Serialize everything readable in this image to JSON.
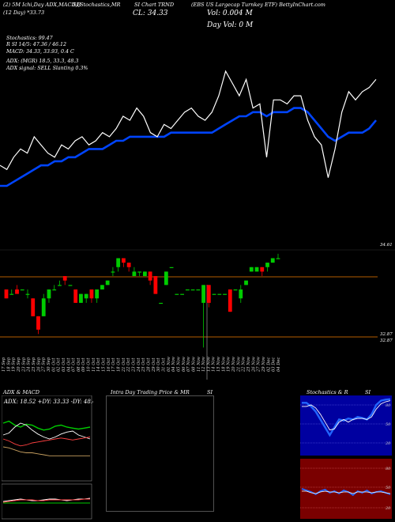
{
  "header": {
    "line1_left": "(2) 5M Ichi,Day ADX,MACD,B",
    "line1_mid": "SI,Stochastics,MR",
    "line1_mid2": "SI Chart TRND",
    "line1_right": "(EBS US Largecap Turnkey ETF) BettyInChart.com",
    "line2_left": "(12 Day) *33.73",
    "close_label": "CL: 34.33",
    "vol_label": "Vol: 0.004  M",
    "dayvol_label": "Day Vol: 0  M"
  },
  "indicators": {
    "stochastics": "Stochastics: 99.47",
    "rsi": "R           SI 14/5: 47.36 / 46.12",
    "macd": "MACD: 34.33, 33.93, 0.4  C",
    "adx": "ADX:                         (MGR) 18.5, 33.3, 48.3",
    "signal": "ADX  signal: SELL  Slanting 0.3%"
  },
  "price_labels": {
    "top": "34.61",
    "bottom1": "32.87",
    "bottom2": "32.87"
  },
  "colors": {
    "up": "#00cc00",
    "down": "#ff0000",
    "ma": "#0044ff",
    "line": "#ffffff",
    "hline": "#b35c00",
    "macd_bg": "#7a0000",
    "stoch_bg": "#0000a0"
  },
  "x_dates": [
    "17 Sep",
    "18 Sep",
    "19 Sep",
    "20 Sep",
    "23 Sep",
    "24 Sep",
    "25 Sep",
    "26 Sep",
    "27 Sep",
    "30 Sep",
    "01 Oct",
    "02 Oct",
    "03 Oct",
    "04 Oct",
    "07 Oct",
    "08 Oct",
    "09 Oct",
    "10 Oct",
    "11 Oct",
    "14 Oct",
    "15 Oct",
    "16 Oct",
    "17 Oct",
    "18 Oct",
    "21 Oct",
    "22 Oct",
    "23 Oct",
    "24 Oct",
    "25 Oct",
    "28 Oct",
    "29 Oct",
    "30 Oct",
    "31 Oct",
    "01 Nov",
    "04 Nov",
    "05 Nov",
    "06 Nov",
    "07 Nov",
    "08 Nov",
    "11 Nov",
    "12 Nov",
    "13 Nov",
    "14 Nov",
    "15 Nov",
    "18 Nov",
    "19 Nov",
    "20 Nov",
    "21 Nov",
    "22 Nov",
    "25 Nov",
    "26 Nov",
    "27 Nov",
    "29 Nov",
    "02 Dec",
    "03 Dec",
    "04 Dec"
  ],
  "panels": {
    "adx_title": "ADX  & MACD",
    "adx_values": "ADX: 18.52  +DY: 33.33 -DY: 48.48",
    "intraday_title": "Intra  Day Trading Price  & MR",
    "intraday_si": "SI",
    "stoch_title": "Stochastics & R",
    "stoch_si": "SI",
    "stoch_levels": [
      "80",
      "50",
      "20"
    ],
    "rsi_levels": [
      "80",
      "50",
      "20"
    ]
  },
  "chart_data": [
    {
      "type": "line",
      "title": "",
      "series": [
        {
          "values": [
            36.2,
            36.1,
            36.4,
            36.6,
            36.5,
            36.9,
            36.7,
            36.5,
            36.4,
            36.7,
            36.6,
            36.8,
            36.9,
            36.7,
            36.8,
            37.0,
            36.9,
            37.1,
            37.4,
            37.3,
            37.6,
            37.4,
            37.0,
            36.9,
            37.2,
            37.1,
            37.3,
            37.5,
            37.6,
            37.4,
            37.3,
            37.5,
            37.9,
            38.5,
            38.2,
            37.9,
            38.3,
            37.6,
            37.7,
            36.4,
            37.8,
            37.8,
            37.7,
            37.9,
            37.9,
            37.3,
            36.9,
            36.7,
            35.9,
            36.6,
            37.5,
            38.0,
            37.8,
            38.0,
            38.1,
            38.3
          ]
        },
        {
          "values": [
            35.7,
            35.7,
            35.8,
            35.9,
            36.0,
            36.1,
            36.2,
            36.2,
            36.3,
            36.3,
            36.4,
            36.4,
            36.5,
            36.6,
            36.6,
            36.6,
            36.7,
            36.8,
            36.8,
            36.9,
            36.9,
            36.9,
            36.9,
            36.9,
            36.9,
            37.0,
            37.0,
            37.0,
            37.0,
            37.0,
            37.0,
            37.0,
            37.1,
            37.2,
            37.3,
            37.4,
            37.4,
            37.5,
            37.5,
            37.4,
            37.5,
            37.5,
            37.5,
            37.6,
            37.6,
            37.5,
            37.3,
            37.1,
            36.9,
            36.8,
            36.9,
            37.0,
            37.0,
            37.0,
            37.1,
            37.3
          ]
        }
      ]
    },
    {
      "type": "bar",
      "title": "",
      "candles": [
        [
          33.9,
          33.7,
          33.8,
          33.7
        ],
        [
          33.8,
          33.8,
          33.9,
          33.8
        ],
        [
          33.9,
          33.8,
          34.0,
          33.9
        ],
        [
          33.9,
          33.9,
          33.9,
          33.9
        ],
        [
          33.8,
          33.8,
          33.9,
          33.7
        ],
        [
          33.7,
          33.3,
          33.7,
          33.3
        ],
        [
          33.3,
          33.0,
          33.3,
          32.9
        ],
        [
          33.3,
          33.7,
          33.8,
          33.3
        ],
        [
          33.7,
          33.9,
          33.9,
          33.6
        ],
        [
          33.9,
          33.9,
          34.0,
          33.9
        ],
        [
          34.0,
          34.0,
          34.1,
          34.0
        ],
        [
          34.2,
          34.1,
          34.2,
          34.0
        ],
        [
          34.0,
          34.0,
          34.0,
          34.0
        ],
        [
          33.9,
          33.6,
          33.9,
          33.6
        ],
        [
          33.6,
          33.8,
          33.8,
          33.6
        ],
        [
          33.7,
          33.8,
          33.8,
          33.6
        ],
        [
          33.9,
          33.7,
          33.9,
          33.6
        ],
        [
          33.7,
          33.9,
          33.9,
          33.6
        ],
        [
          33.9,
          34.0,
          34.0,
          33.9
        ],
        [
          34.0,
          34.1,
          34.1,
          34.0
        ],
        [
          34.3,
          34.3,
          34.4,
          34.2
        ],
        [
          34.4,
          34.6,
          34.6,
          34.3
        ],
        [
          34.6,
          34.5,
          34.6,
          34.4
        ],
        [
          34.5,
          34.4,
          34.5,
          34.3
        ],
        [
          34.2,
          34.3,
          34.4,
          34.2
        ],
        [
          34.3,
          34.3,
          34.3,
          34.2
        ],
        [
          34.2,
          34.3,
          34.3,
          34.2
        ],
        [
          34.3,
          34.1,
          34.3,
          34.0
        ],
        [
          34.2,
          33.8,
          34.2,
          33.8
        ],
        [
          33.6,
          33.6,
          33.6,
          33.6
        ],
        [
          34.0,
          34.3,
          34.3,
          34.0
        ],
        [
          34.4,
          34.4,
          34.4,
          34.4
        ],
        [
          33.8,
          33.8,
          33.8,
          33.8
        ],
        [
          33.8,
          33.8,
          33.8,
          33.8
        ],
        [
          33.9,
          33.9,
          33.9,
          33.9
        ],
        [
          33.9,
          33.9,
          33.9,
          33.9
        ],
        [
          33.9,
          33.9,
          33.9,
          33.9
        ],
        [
          33.6,
          34.0,
          34.0,
          32.6
        ],
        [
          34.0,
          33.6,
          34.0,
          33.5
        ],
        [
          33.8,
          33.8,
          33.8,
          33.8
        ],
        [
          33.8,
          33.8,
          33.8,
          33.8
        ],
        [
          33.8,
          33.8,
          33.8,
          33.8
        ],
        [
          33.9,
          33.4,
          33.9,
          33.4
        ],
        [
          33.9,
          33.9,
          33.9,
          33.9
        ],
        [
          33.7,
          33.9,
          34.0,
          33.6
        ],
        [
          34.0,
          34.1,
          34.1,
          34.0
        ],
        [
          34.3,
          34.4,
          34.4,
          34.3
        ],
        [
          34.3,
          34.4,
          34.4,
          34.3
        ],
        [
          34.4,
          34.3,
          34.4,
          34.2
        ],
        [
          34.4,
          34.5,
          34.5,
          34.3
        ],
        [
          34.5,
          34.6,
          34.6,
          34.5
        ],
        [
          34.6,
          34.6,
          34.7,
          34.6
        ]
      ]
    },
    {
      "type": "line",
      "title": "",
      "series": [
        {
          "values": [
            52,
            54,
            50,
            48,
            51,
            50,
            47,
            45,
            46,
            49,
            50,
            48,
            47,
            46,
            47,
            48
          ]
        },
        {
          "values": [
            40,
            42,
            48,
            52,
            50,
            45,
            41,
            38,
            36,
            38,
            41,
            43,
            44,
            40,
            38,
            36
          ]
        },
        {
          "values": [
            28,
            27,
            25,
            23,
            22,
            22,
            21,
            20,
            19,
            19,
            19,
            19,
            19,
            19,
            19,
            19
          ]
        },
        {
          "values": [
            36,
            34,
            31,
            29,
            30,
            32,
            33,
            34,
            35,
            36,
            37,
            36,
            35,
            36,
            37,
            38
          ]
        }
      ]
    },
    {
      "type": "line",
      "title": "",
      "series": [
        {
          "values": [
            92,
            92,
            85,
            75,
            60,
            45,
            30,
            45,
            60,
            58,
            62,
            60,
            65,
            63,
            60,
            70,
            88,
            96,
            98,
            99
          ]
        },
        {
          "values": [
            85,
            85,
            88,
            82,
            70,
            55,
            40,
            42,
            55,
            60,
            55,
            60,
            62,
            62,
            60,
            65,
            80,
            90,
            94,
            96
          ]
        }
      ]
    }
  ]
}
